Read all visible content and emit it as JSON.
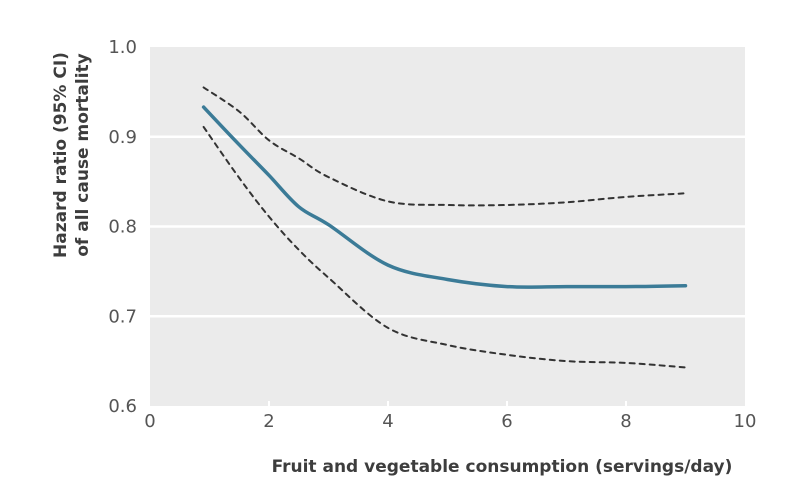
{
  "chart_data": {
    "type": "line",
    "title": "",
    "xlabel": "Fruit and vegetable consumption (servings/day)",
    "ylabel_lines": [
      "Hazard ratio (95% CI)",
      "of all cause mortality"
    ],
    "xlim": [
      0,
      10
    ],
    "ylim": [
      0.6,
      1.0
    ],
    "x_ticks": [
      0,
      2,
      4,
      6,
      8,
      10
    ],
    "x_tick_labels": [
      "0",
      "2",
      "4",
      "6",
      "8",
      "10"
    ],
    "y_ticks": [
      0.6,
      0.7,
      0.8,
      0.9,
      1.0
    ],
    "y_tick_labels": [
      "0.6",
      "0.7",
      "0.8",
      "0.9",
      "1.0"
    ],
    "grid": "horizontal",
    "legend": "none",
    "x": [
      0.9,
      1.5,
      2,
      2.5,
      3,
      4,
      5,
      6,
      7,
      8,
      9
    ],
    "series": [
      {
        "name": "Hazard ratio",
        "style": "solid",
        "color": "#3b7b97",
        "values": [
          0.933,
          0.891,
          0.857,
          0.822,
          0.802,
          0.757,
          0.741,
          0.733,
          0.733,
          0.733,
          0.734
        ]
      },
      {
        "name": "Upper 95% CI",
        "style": "dashed",
        "color": "#333333",
        "values": [
          0.955,
          0.928,
          0.896,
          0.876,
          0.855,
          0.828,
          0.824,
          0.824,
          0.827,
          0.833,
          0.837
        ]
      },
      {
        "name": "Lower 95% CI",
        "style": "dashed",
        "color": "#333333",
        "values": [
          0.911,
          0.854,
          0.811,
          0.774,
          0.743,
          0.687,
          0.668,
          0.657,
          0.65,
          0.648,
          0.643
        ]
      }
    ],
    "colors": {
      "plot_background": "#ebebeb",
      "gridline": "#ffffff"
    }
  }
}
